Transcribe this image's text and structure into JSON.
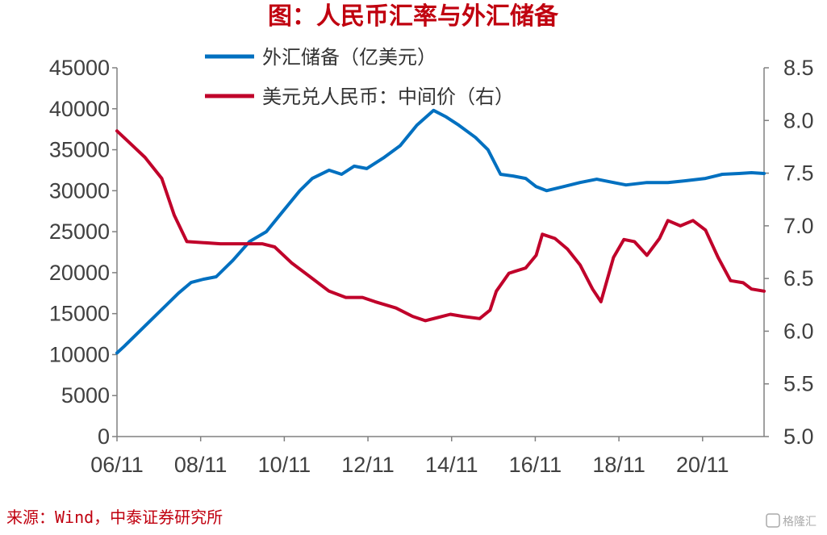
{
  "chart_data": {
    "type": "line",
    "title": "图：人民币汇率与外汇储备",
    "x_tick_labels": [
      "06/11",
      "08/11",
      "10/11",
      "12/11",
      "14/11",
      "16/11",
      "18/11",
      "20/11"
    ],
    "y_left": {
      "min": 0,
      "max": 45000,
      "ticks": [
        0,
        5000,
        10000,
        15000,
        20000,
        25000,
        30000,
        35000,
        40000,
        45000
      ]
    },
    "y_right": {
      "min": 5.0,
      "max": 8.5,
      "ticks": [
        "5.0",
        "5.5",
        "6.0",
        "6.5",
        "7.0",
        "7.5",
        "8.0",
        "8.5"
      ]
    },
    "grid": false,
    "legend_position": "top",
    "series": [
      {
        "name": "外汇储备（亿美元）",
        "axis": "left",
        "color": "#0070c0",
        "points": [
          [
            2006.83,
            10200
          ],
          [
            2007.0,
            11000
          ],
          [
            2007.5,
            13500
          ],
          [
            2008.0,
            16000
          ],
          [
            2008.3,
            17500
          ],
          [
            2008.6,
            18800
          ],
          [
            2008.9,
            19200
          ],
          [
            2009.2,
            19500
          ],
          [
            2009.6,
            21500
          ],
          [
            2010.0,
            23800
          ],
          [
            2010.4,
            25000
          ],
          [
            2010.8,
            27500
          ],
          [
            2011.2,
            30000
          ],
          [
            2011.5,
            31500
          ],
          [
            2011.9,
            32500
          ],
          [
            2012.2,
            32000
          ],
          [
            2012.5,
            33000
          ],
          [
            2012.8,
            32700
          ],
          [
            2013.2,
            34000
          ],
          [
            2013.6,
            35500
          ],
          [
            2014.0,
            38000
          ],
          [
            2014.4,
            39800
          ],
          [
            2014.7,
            39000
          ],
          [
            2015.0,
            38000
          ],
          [
            2015.4,
            36500
          ],
          [
            2015.7,
            35000
          ],
          [
            2016.0,
            32000
          ],
          [
            2016.3,
            31800
          ],
          [
            2016.6,
            31500
          ],
          [
            2016.85,
            30500
          ],
          [
            2017.1,
            30000
          ],
          [
            2017.5,
            30500
          ],
          [
            2017.9,
            31000
          ],
          [
            2018.3,
            31400
          ],
          [
            2018.7,
            31000
          ],
          [
            2019.0,
            30700
          ],
          [
            2019.5,
            31000
          ],
          [
            2020.0,
            31000
          ],
          [
            2020.4,
            31200
          ],
          [
            2020.9,
            31500
          ],
          [
            2021.3,
            32000
          ],
          [
            2021.7,
            32100
          ],
          [
            2022.0,
            32200
          ],
          [
            2022.3,
            32100
          ]
        ]
      },
      {
        "name": "美元兑人民币：中间价（右）",
        "axis": "right",
        "color": "#c0002a",
        "points": [
          [
            2006.83,
            7.9
          ],
          [
            2007.1,
            7.8
          ],
          [
            2007.5,
            7.65
          ],
          [
            2007.9,
            7.45
          ],
          [
            2008.2,
            7.1
          ],
          [
            2008.5,
            6.85
          ],
          [
            2008.9,
            6.84
          ],
          [
            2009.3,
            6.83
          ],
          [
            2009.8,
            6.83
          ],
          [
            2010.3,
            6.83
          ],
          [
            2010.6,
            6.8
          ],
          [
            2011.0,
            6.65
          ],
          [
            2011.5,
            6.5
          ],
          [
            2011.9,
            6.38
          ],
          [
            2012.3,
            6.32
          ],
          [
            2012.7,
            6.32
          ],
          [
            2013.0,
            6.28
          ],
          [
            2013.5,
            6.22
          ],
          [
            2013.9,
            6.14
          ],
          [
            2014.2,
            6.1
          ],
          [
            2014.5,
            6.13
          ],
          [
            2014.8,
            6.16
          ],
          [
            2015.1,
            6.14
          ],
          [
            2015.5,
            6.12
          ],
          [
            2015.75,
            6.2
          ],
          [
            2015.9,
            6.38
          ],
          [
            2016.2,
            6.55
          ],
          [
            2016.6,
            6.6
          ],
          [
            2016.85,
            6.72
          ],
          [
            2017.0,
            6.92
          ],
          [
            2017.3,
            6.88
          ],
          [
            2017.6,
            6.78
          ],
          [
            2017.9,
            6.63
          ],
          [
            2018.2,
            6.4
          ],
          [
            2018.4,
            6.28
          ],
          [
            2018.7,
            6.7
          ],
          [
            2018.95,
            6.87
          ],
          [
            2019.2,
            6.85
          ],
          [
            2019.5,
            6.72
          ],
          [
            2019.8,
            6.88
          ],
          [
            2020.0,
            7.05
          ],
          [
            2020.3,
            7.0
          ],
          [
            2020.6,
            7.05
          ],
          [
            2020.9,
            6.96
          ],
          [
            2021.2,
            6.7
          ],
          [
            2021.5,
            6.48
          ],
          [
            2021.8,
            6.46
          ],
          [
            2022.0,
            6.4
          ],
          [
            2022.3,
            6.38
          ]
        ]
      }
    ]
  },
  "source": "来源：Wind，中泰证券研究所",
  "watermark": "格隆汇"
}
